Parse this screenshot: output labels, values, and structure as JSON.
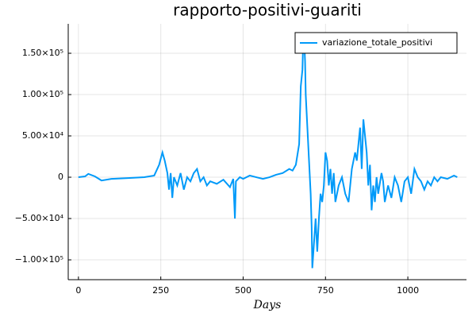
{
  "chart_data": {
    "type": "line",
    "title": "rapporto-positivi-guariti",
    "xlabel": "Days",
    "x": [
      0,
      20,
      30,
      50,
      70,
      100,
      150,
      200,
      230,
      245,
      255,
      262,
      270,
      275,
      280,
      285,
      290,
      300,
      310,
      320,
      330,
      340,
      350,
      360,
      370,
      380,
      390,
      400,
      420,
      440,
      460,
      470,
      475,
      478,
      490,
      500,
      520,
      540,
      560,
      580,
      600,
      620,
      640,
      650,
      660,
      670,
      675,
      680,
      682,
      685,
      688,
      690,
      695,
      700,
      705,
      708,
      710,
      715,
      720,
      725,
      730,
      735,
      740,
      745,
      750,
      755,
      760,
      765,
      770,
      775,
      780,
      790,
      800,
      810,
      820,
      825,
      830,
      840,
      845,
      850,
      855,
      860,
      865,
      870,
      875,
      880,
      885,
      890,
      895,
      900,
      905,
      910,
      920,
      925,
      930,
      940,
      950,
      960,
      970,
      980,
      990,
      1000,
      1010,
      1020,
      1030,
      1040,
      1050,
      1060,
      1070,
      1080,
      1090,
      1100,
      1120,
      1140,
      1150
    ],
    "series": [
      {
        "name": "variazione_totale_positivi",
        "color": "#009af9",
        "values": [
          0,
          1000,
          4000,
          1000,
          -4000,
          -2000,
          -1000,
          0,
          2000,
          15000,
          30000,
          20000,
          5000,
          -15000,
          5000,
          -25000,
          0,
          -10000,
          5000,
          -15000,
          0,
          -5000,
          5000,
          10000,
          -5000,
          0,
          -10000,
          -5000,
          -8000,
          -3000,
          -12000,
          -2000,
          -50000,
          -5000,
          0,
          -2000,
          2000,
          0,
          -2000,
          0,
          3000,
          5000,
          10000,
          8000,
          15000,
          40000,
          110000,
          130000,
          160000,
          170000,
          140000,
          100000,
          60000,
          20000,
          -20000,
          -60000,
          -110000,
          -80000,
          -50000,
          -90000,
          -50000,
          -20000,
          -30000,
          -10000,
          30000,
          20000,
          -10000,
          10000,
          -20000,
          5000,
          -30000,
          -10000,
          0,
          -20000,
          -30000,
          -10000,
          10000,
          30000,
          20000,
          40000,
          60000,
          10000,
          70000,
          50000,
          30000,
          -10000,
          15000,
          -40000,
          -10000,
          -30000,
          0,
          -20000,
          5000,
          -5000,
          -30000,
          -10000,
          -25000,
          0,
          -10000,
          -30000,
          -5000,
          0,
          -20000,
          10000,
          0,
          -5000,
          -15000,
          -5000,
          -10000,
          0,
          -5000,
          0,
          -2000,
          2000,
          0
        ]
      }
    ],
    "xlim": [
      -31,
      1178
    ],
    "ylim": [
      -124000,
      185600
    ],
    "xticks": [
      0,
      250,
      500,
      750,
      1000
    ],
    "yticks": [
      {
        "value": -100000,
        "label": "−1.00×10⁵"
      },
      {
        "value": -50000,
        "label": "−5.00×10⁴"
      },
      0,
      {
        "value": 50000,
        "label": "5.00×10⁴"
      },
      {
        "value": 100000,
        "label": "1.00×10⁵"
      },
      {
        "value": 150000,
        "label": "1.50×10⁵"
      }
    ],
    "grid": true,
    "legend": "top-right"
  }
}
